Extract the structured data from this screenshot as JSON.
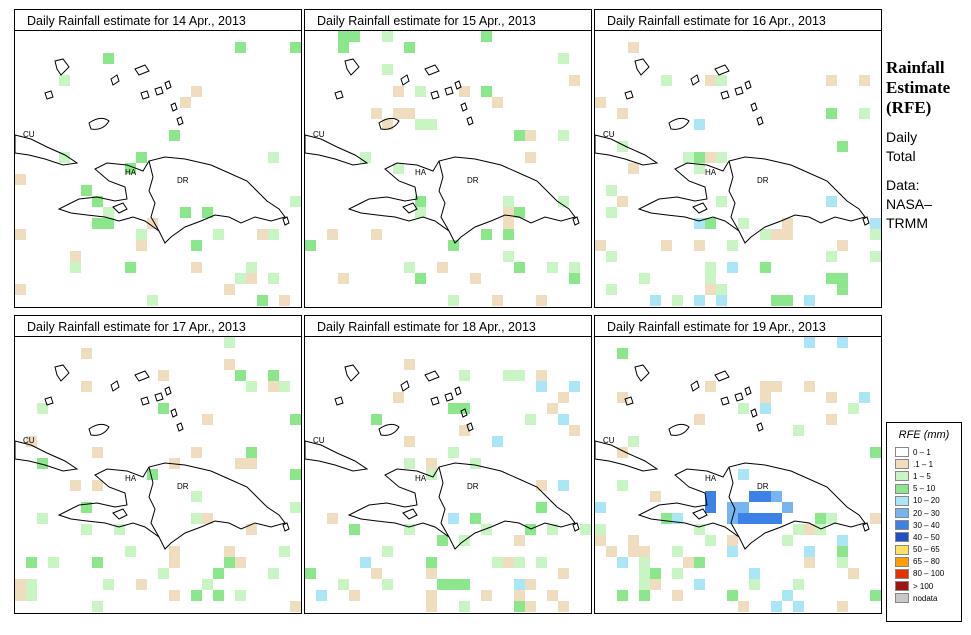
{
  "panels": [
    {
      "title": "Daily Rainfall estimate for  14 Apr., 2013",
      "seed": 14,
      "intensity": 1
    },
    {
      "title": "Daily Rainfall estimate for  15 Apr., 2013",
      "seed": 15,
      "intensity": 1
    },
    {
      "title": "Daily Rainfall estimate for  16 Apr., 2013",
      "seed": 16,
      "intensity": 2
    },
    {
      "title": "Daily Rainfall estimate for  17 Apr., 2013",
      "seed": 17,
      "intensity": 1
    },
    {
      "title": "Daily Rainfall estimate for  18 Apr., 2013",
      "seed": 18,
      "intensity": 2
    },
    {
      "title": "Daily Rainfall estimate for  19 Apr., 2013",
      "seed": 19,
      "intensity": 3
    }
  ],
  "region_labels": {
    "cuba": "CU",
    "haiti": "HA",
    "dominican_republic": "DR"
  },
  "side": {
    "title_line1": "Rainfall",
    "title_line2": "Estimate",
    "title_line3": "(RFE)",
    "line4": "Daily",
    "line5": "Total",
    "line6": "Data:",
    "line7": "NASA–",
    "line8": "TRMM"
  },
  "legend": {
    "title": "RFE (mm)",
    "items": [
      {
        "label": "0 – 1",
        "color": "#ffffff"
      },
      {
        "label": ".1 – 1",
        "color": "#f0dcbe"
      },
      {
        "label": "1 – 5",
        "color": "#c8f5c3"
      },
      {
        "label": "5 – 10",
        "color": "#8ce68c"
      },
      {
        "label": "10 – 20",
        "color": "#aae6f5"
      },
      {
        "label": "20 – 30",
        "color": "#78b4f0"
      },
      {
        "label": "30 – 40",
        "color": "#3c82e6"
      },
      {
        "label": "40 – 50",
        "color": "#1e50c8"
      },
      {
        "label": "50 – 65",
        "color": "#ffe164"
      },
      {
        "label": "65 – 80",
        "color": "#ffa000"
      },
      {
        "label": "80 – 100",
        "color": "#e63200"
      },
      {
        "label": "> 100",
        "color": "#a01414"
      },
      {
        "label": "nodata",
        "color": "#c8c8c8"
      }
    ]
  }
}
